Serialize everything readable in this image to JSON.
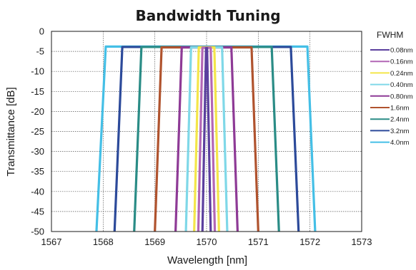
{
  "chart_data": {
    "type": "line",
    "title": "Bandwidth Tuning",
    "xlabel": "Wavelength [nm]",
    "ylabel": "Transmittance [dB]",
    "xlim": [
      1567,
      1573
    ],
    "ylim": [
      -50,
      0
    ],
    "xticks": [
      "1567",
      "1568",
      "1569",
      "1570",
      "1571",
      "1572",
      "1573"
    ],
    "yticks": [
      "0",
      "-5",
      "-10",
      "-15",
      "-20",
      "-25",
      "-30",
      "-35",
      "-40",
      "-45",
      "-50"
    ],
    "grid": true,
    "legend_title": "FWHM",
    "legend_position": "right",
    "center_wavelength": 1570,
    "series": [
      {
        "name": "0.08nm",
        "color": "#5b3f9e",
        "points": [
          [
            1569.92,
            -50
          ],
          [
            1569.99,
            -4.2
          ],
          [
            1570.01,
            -4.2
          ],
          [
            1570.08,
            -50
          ]
        ]
      },
      {
        "name": "0.16nm",
        "color": "#b266b5",
        "points": [
          [
            1569.84,
            -50
          ],
          [
            1569.92,
            -4.1
          ],
          [
            1570.08,
            -4.1
          ],
          [
            1570.16,
            -50
          ]
        ]
      },
      {
        "name": "0.24nm",
        "color": "#f4e64a",
        "points": [
          [
            1569.76,
            -50
          ],
          [
            1569.85,
            -4
          ],
          [
            1570.15,
            -4
          ],
          [
            1570.24,
            -50
          ]
        ]
      },
      {
        "name": "0.40nm",
        "color": "#7fd8e8",
        "points": [
          [
            1569.6,
            -50
          ],
          [
            1569.7,
            -4
          ],
          [
            1570.3,
            -4
          ],
          [
            1570.4,
            -50
          ]
        ]
      },
      {
        "name": "0.80nm",
        "color": "#8e3a96",
        "points": [
          [
            1569.4,
            -50
          ],
          [
            1569.52,
            -4
          ],
          [
            1570.48,
            -4
          ],
          [
            1570.6,
            -50
          ]
        ]
      },
      {
        "name": "1.6nm",
        "color": "#b0532e",
        "points": [
          [
            1569.0,
            -50
          ],
          [
            1569.13,
            -4
          ],
          [
            1570.87,
            -4
          ],
          [
            1571.0,
            -50
          ]
        ]
      },
      {
        "name": "2.4nm",
        "color": "#2a8c86",
        "points": [
          [
            1568.6,
            -50
          ],
          [
            1568.74,
            -3.9
          ],
          [
            1571.26,
            -3.9
          ],
          [
            1571.4,
            -50
          ]
        ]
      },
      {
        "name": "3.2nm",
        "color": "#2c4a9a",
        "points": [
          [
            1568.22,
            -50
          ],
          [
            1568.37,
            -3.9
          ],
          [
            1571.63,
            -3.9
          ],
          [
            1571.78,
            -50
          ]
        ]
      },
      {
        "name": "4.0nm",
        "color": "#44bfe6",
        "points": [
          [
            1567.87,
            -50
          ],
          [
            1568.05,
            -3.8
          ],
          [
            1571.95,
            -3.8
          ],
          [
            1572.1,
            -50
          ]
        ]
      }
    ]
  }
}
